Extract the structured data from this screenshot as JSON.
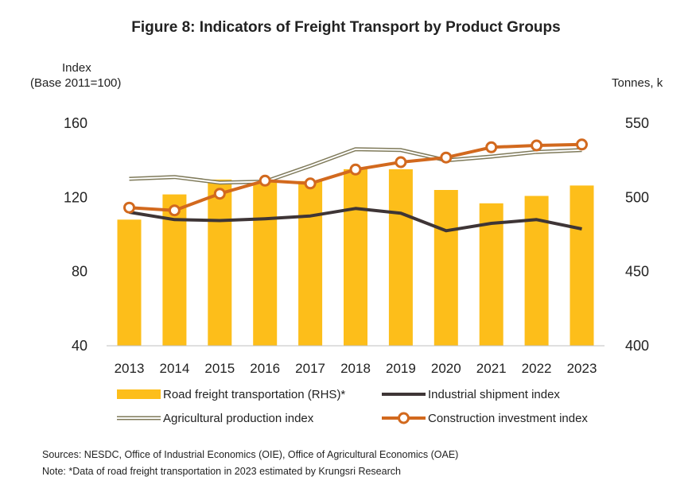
{
  "chart_data": {
    "type": "bar+line",
    "title": "Figure 8:  Indicators of Freight Transport by Product Groups",
    "y_left_label_line1": "Index",
    "y_left_label_line2": "(Base 2011=100)",
    "y_right_label": "Tonnes, k",
    "categories": [
      "2013",
      "2014",
      "2015",
      "2016",
      "2017",
      "2018",
      "2019",
      "2020",
      "2021",
      "2022",
      "2023"
    ],
    "y_left": {
      "ticks": [
        "40",
        "80",
        "120",
        "160"
      ],
      "ylim": [
        40,
        160
      ]
    },
    "y_right": {
      "ticks": [
        "400",
        "450",
        "500",
        "550"
      ],
      "ylim": [
        400,
        550
      ]
    },
    "grid": false,
    "legend_position": "bottom",
    "series": [
      {
        "name": "Road freight transportation (RHS)*",
        "type": "bar",
        "axis": "right",
        "color": "#FDBE1A",
        "values": [
          485,
          502,
          512,
          511,
          511,
          519,
          519,
          505,
          496,
          501,
          508
        ]
      },
      {
        "name": "Industrial shipment index",
        "type": "line",
        "axis": "left",
        "color": "#3E3536",
        "values": [
          112,
          108,
          107.5,
          108.5,
          110,
          114,
          111.5,
          102,
          106,
          108,
          103
        ]
      },
      {
        "name": "Agricultural production index",
        "type": "double-line",
        "axis": "left",
        "color": "#7F7A5A",
        "values": [
          130,
          131,
          128,
          128.5,
          137,
          146,
          145.5,
          140,
          142,
          144.5,
          145.5
        ]
      },
      {
        "name": "Construction investment index",
        "type": "line-marker",
        "axis": "left",
        "color": "#D2691E",
        "values": [
          114.5,
          113,
          122,
          129,
          127.5,
          135,
          139,
          141.5,
          147,
          148,
          148.5
        ]
      }
    ]
  },
  "notes": {
    "sources": "Sources: NESDC, Office of Industrial Economics (OIE), Office of Agricultural Economics (OAE)",
    "note": "Note: *Data of  road freight transportation in 2023 estimated by  Krungsri Research"
  }
}
